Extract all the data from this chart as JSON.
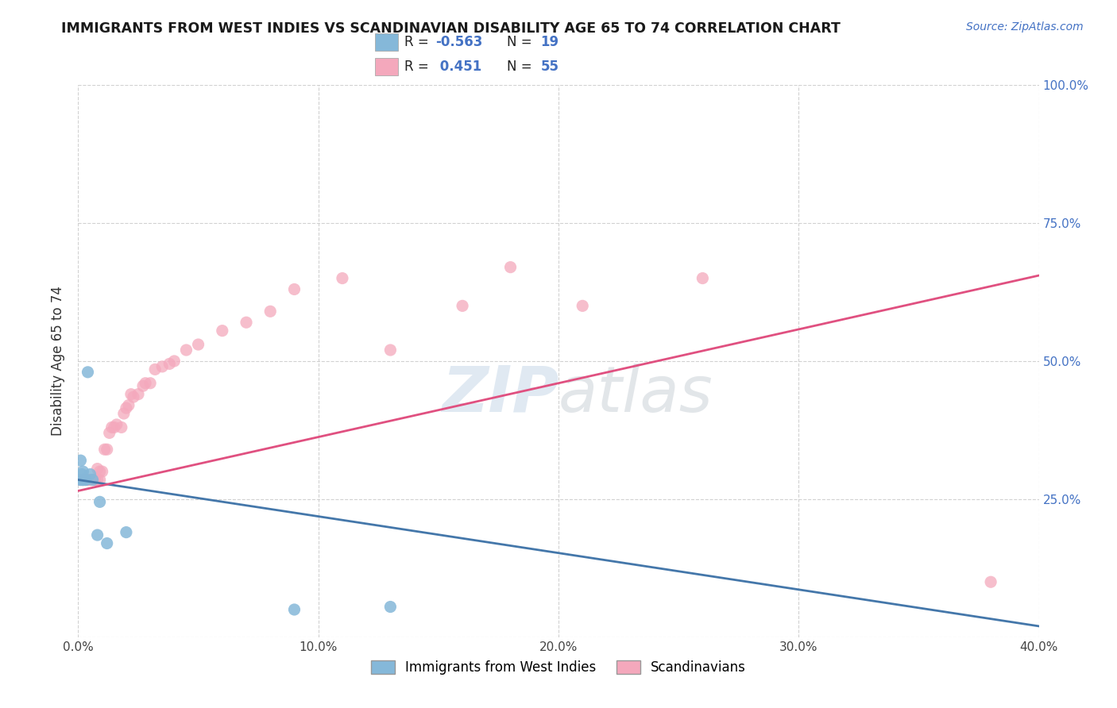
{
  "title": "IMMIGRANTS FROM WEST INDIES VS SCANDINAVIAN DISABILITY AGE 65 TO 74 CORRELATION CHART",
  "source": "Source: ZipAtlas.com",
  "ylabel": "Disability Age 65 to 74",
  "xlim": [
    0.0,
    0.4
  ],
  "ylim": [
    0.0,
    1.0
  ],
  "x_ticks": [
    0.0,
    0.1,
    0.2,
    0.3,
    0.4
  ],
  "x_tick_labels": [
    "0.0%",
    "10.0%",
    "20.0%",
    "30.0%",
    "40.0%"
  ],
  "y_ticks": [
    0.0,
    0.25,
    0.5,
    0.75,
    1.0
  ],
  "y_tick_labels_right": [
    "",
    "25.0%",
    "50.0%",
    "75.0%",
    "100.0%"
  ],
  "blue_R": -0.563,
  "blue_N": 19,
  "pink_R": 0.451,
  "pink_N": 55,
  "blue_color": "#85b8d9",
  "pink_color": "#f4a8bc",
  "blue_line_color": "#4477aa",
  "pink_line_color": "#e05080",
  "legend_label_blue": "Immigrants from West Indies",
  "legend_label_pink": "Scandinavians",
  "blue_x": [
    0.0008,
    0.001,
    0.0012,
    0.0015,
    0.0018,
    0.002,
    0.002,
    0.0022,
    0.003,
    0.0032,
    0.004,
    0.005,
    0.006,
    0.008,
    0.009,
    0.012,
    0.02,
    0.09,
    0.13
  ],
  "blue_y": [
    0.285,
    0.32,
    0.285,
    0.295,
    0.285,
    0.285,
    0.3,
    0.285,
    0.285,
    0.285,
    0.48,
    0.295,
    0.285,
    0.185,
    0.245,
    0.17,
    0.19,
    0.05,
    0.055
  ],
  "pink_x": [
    0.0005,
    0.001,
    0.001,
    0.0015,
    0.002,
    0.002,
    0.002,
    0.003,
    0.003,
    0.004,
    0.004,
    0.005,
    0.005,
    0.006,
    0.006,
    0.007,
    0.007,
    0.008,
    0.008,
    0.009,
    0.009,
    0.01,
    0.011,
    0.012,
    0.013,
    0.014,
    0.015,
    0.016,
    0.018,
    0.019,
    0.02,
    0.021,
    0.022,
    0.023,
    0.025,
    0.027,
    0.028,
    0.03,
    0.032,
    0.035,
    0.038,
    0.04,
    0.045,
    0.05,
    0.06,
    0.07,
    0.08,
    0.09,
    0.11,
    0.13,
    0.16,
    0.18,
    0.21,
    0.26,
    0.38
  ],
  "pink_y": [
    0.285,
    0.285,
    0.285,
    0.285,
    0.285,
    0.285,
    0.285,
    0.285,
    0.285,
    0.285,
    0.285,
    0.285,
    0.285,
    0.285,
    0.285,
    0.285,
    0.285,
    0.285,
    0.305,
    0.285,
    0.3,
    0.3,
    0.34,
    0.34,
    0.37,
    0.38,
    0.38,
    0.385,
    0.38,
    0.405,
    0.415,
    0.42,
    0.44,
    0.435,
    0.44,
    0.455,
    0.46,
    0.46,
    0.485,
    0.49,
    0.495,
    0.5,
    0.52,
    0.53,
    0.555,
    0.57,
    0.59,
    0.63,
    0.65,
    0.52,
    0.6,
    0.67,
    0.6,
    0.65,
    0.1
  ],
  "blue_line_x0": 0.0,
  "blue_line_y0": 0.285,
  "blue_line_x1": 0.4,
  "blue_line_y1": 0.02,
  "pink_line_x0": 0.0,
  "pink_line_y0": 0.265,
  "pink_line_x1": 0.4,
  "pink_line_y1": 0.655
}
